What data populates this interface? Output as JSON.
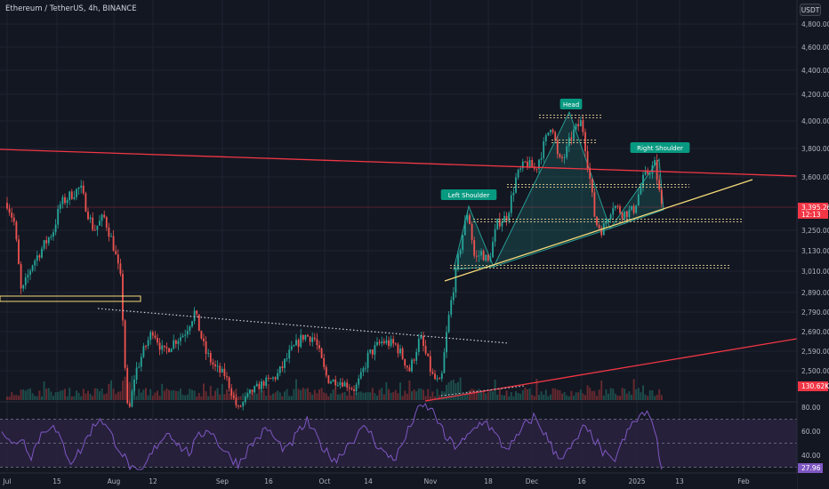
{
  "header": {
    "symbol": "Ethereum / TetherUS, 4h, BINANCE",
    "currency_button": "USDT"
  },
  "colors": {
    "background": "#131722",
    "grid": "#1f2330",
    "bull": "#26a69a",
    "bear": "#ef5350",
    "trendline_red": "#f23645",
    "neckline": "#f5d978",
    "rsi_line": "#7e57c2",
    "rsi_band": "#2a2240"
  },
  "chart_data": [
    {
      "type": "candlestick",
      "title": "Ethereum / TetherUS, 4h, BINANCE",
      "xlabel": "",
      "ylabel": "",
      "y_tick_labels": [
        "4,800.00",
        "4,600.00",
        "4,400.00",
        "4,200.00",
        "4,000.00",
        "3,800.00",
        "3,600.00",
        "3,250.00",
        "3,130.00",
        "3,010.00",
        "2,890.00",
        "2,790.00",
        "2,690.00",
        "2,590.00",
        "2,500.00"
      ],
      "x_tick_labels": [
        "Jul",
        "15",
        "Aug",
        "12",
        "Sep",
        "16",
        "Oct",
        "14",
        "Nov",
        "18",
        "Dec",
        "16",
        "2025",
        "13",
        "Feb"
      ],
      "price_points": [
        {
          "date": "Jul 1",
          "close": 3430
        },
        {
          "date": "Jul 3",
          "close": 3300
        },
        {
          "date": "Jul 5",
          "close": 2880
        },
        {
          "date": "Jul 8",
          "close": 3050
        },
        {
          "date": "Jul 11",
          "close": 3150
        },
        {
          "date": "Jul 14",
          "close": 3250
        },
        {
          "date": "Jul 16",
          "close": 3420
        },
        {
          "date": "Jul 19",
          "close": 3480
        },
        {
          "date": "Jul 22",
          "close": 3530
        },
        {
          "date": "Jul 24",
          "close": 3380
        },
        {
          "date": "Jul 26",
          "close": 3250
        },
        {
          "date": "Jul 29",
          "close": 3340
        },
        {
          "date": "Aug 1",
          "close": 3150
        },
        {
          "date": "Aug 3",
          "close": 2950
        },
        {
          "date": "Aug 5",
          "close": 2200
        },
        {
          "date": "Aug 7",
          "close": 2490
        },
        {
          "date": "Aug 10",
          "close": 2620
        },
        {
          "date": "Aug 12",
          "close": 2700
        },
        {
          "date": "Aug 15",
          "close": 2580
        },
        {
          "date": "Aug 18",
          "close": 2640
        },
        {
          "date": "Aug 21",
          "close": 2680
        },
        {
          "date": "Aug 24",
          "close": 2790
        },
        {
          "date": "Aug 27",
          "close": 2590
        },
        {
          "date": "Aug 30",
          "close": 2510
        },
        {
          "date": "Sep 2",
          "close": 2470
        },
        {
          "date": "Sep 6",
          "close": 2250
        },
        {
          "date": "Sep 10",
          "close": 2360
        },
        {
          "date": "Sep 14",
          "close": 2420
        },
        {
          "date": "Sep 18",
          "close": 2460
        },
        {
          "date": "Sep 22",
          "close": 2580
        },
        {
          "date": "Sep 26",
          "close": 2670
        },
        {
          "date": "Sep 29",
          "close": 2660
        },
        {
          "date": "Oct 2",
          "close": 2440
        },
        {
          "date": "Oct 6",
          "close": 2430
        },
        {
          "date": "Oct 10",
          "close": 2380
        },
        {
          "date": "Oct 14",
          "close": 2570
        },
        {
          "date": "Oct 18",
          "close": 2640
        },
        {
          "date": "Oct 22",
          "close": 2620
        },
        {
          "date": "Oct 26",
          "close": 2500
        },
        {
          "date": "Oct 29",
          "close": 2660
        },
        {
          "date": "Nov 2",
          "close": 2450
        },
        {
          "date": "Nov 4",
          "close": 2420
        },
        {
          "date": "Nov 6",
          "close": 2720
        },
        {
          "date": "Nov 8",
          "close": 2950
        },
        {
          "date": "Nov 10",
          "close": 3180
        },
        {
          "date": "Nov 12",
          "close": 3380
        },
        {
          "date": "Nov 14",
          "close": 3080
        },
        {
          "date": "Nov 16",
          "close": 3120
        },
        {
          "date": "Nov 18",
          "close": 3060
        },
        {
          "date": "Nov 21",
          "close": 3300
        },
        {
          "date": "Nov 24",
          "close": 3340
        },
        {
          "date": "Nov 27",
          "close": 3600
        },
        {
          "date": "Nov 30",
          "close": 3700
        },
        {
          "date": "Dec 2",
          "close": 3650
        },
        {
          "date": "Dec 5",
          "close": 3850
        },
        {
          "date": "Dec 7",
          "close": 4000
        },
        {
          "date": "Dec 9",
          "close": 3700
        },
        {
          "date": "Dec 11",
          "close": 3750
        },
        {
          "date": "Dec 13",
          "close": 3900
        },
        {
          "date": "Dec 16",
          "close": 4000
        },
        {
          "date": "Dec 18",
          "close": 3650
        },
        {
          "date": "Dec 20",
          "close": 3300
        },
        {
          "date": "Dec 22",
          "close": 3250
        },
        {
          "date": "Dec 25",
          "close": 3420
        },
        {
          "date": "Dec 28",
          "close": 3360
        },
        {
          "date": "Dec 31",
          "close": 3380
        },
        {
          "date": "Jan 3",
          "close": 3600
        },
        {
          "date": "Jan 6",
          "close": 3690
        },
        {
          "date": "Jan 8",
          "close": 3395
        }
      ],
      "current_price": {
        "label": "3,395.26",
        "countdown": "12:13"
      },
      "volume_label": "130.62K",
      "annotations": [
        "Left Shoulder",
        "Head",
        "Right Shoulder"
      ],
      "grid": true
    },
    {
      "type": "line",
      "title": "",
      "y_tick_labels": [
        "80.00",
        "60.00",
        "40.00"
      ],
      "current_value_label": "27.96",
      "ylim": [
        20,
        85
      ],
      "band": [
        30,
        70
      ],
      "values": [
        62,
        48,
        55,
        40,
        58,
        66,
        52,
        35,
        44,
        60,
        72,
        58,
        45,
        30,
        22,
        38,
        52,
        60,
        48,
        42,
        55,
        63,
        50,
        40,
        33,
        45,
        55,
        62,
        50,
        44,
        58,
        68,
        54,
        42,
        36,
        48,
        56,
        64,
        50,
        40,
        38,
        55,
        75,
        82,
        74,
        55,
        48,
        52,
        62,
        70,
        58,
        46,
        50,
        64,
        72,
        60,
        44,
        38,
        48,
        62,
        56,
        42,
        34,
        50,
        66,
        74,
        72,
        28
      ]
    }
  ]
}
